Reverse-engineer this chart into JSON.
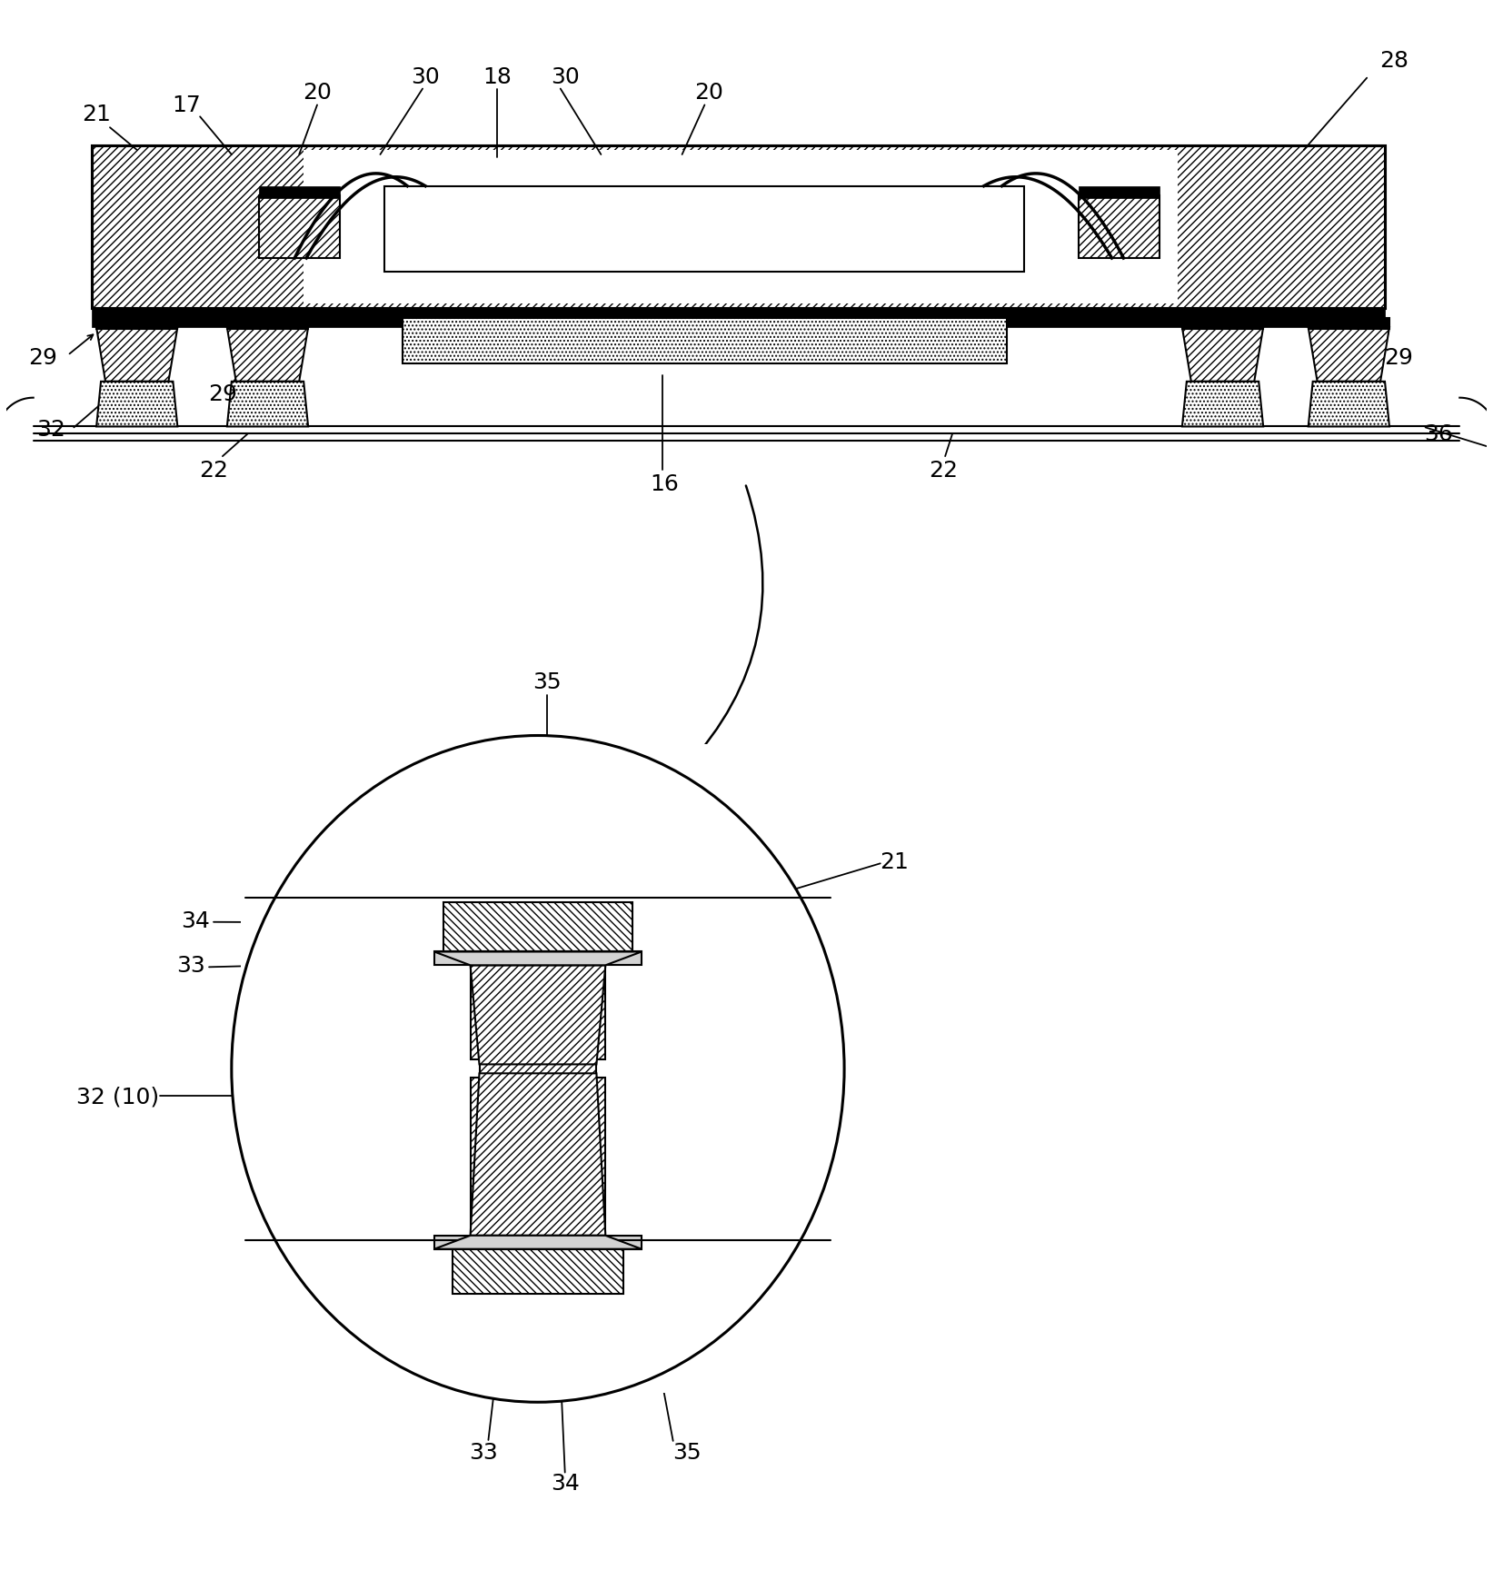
{
  "bg_color": "#ffffff",
  "fig_width": 16.43,
  "fig_height": 17.4,
  "lw_main": 1.5,
  "lw_thick": 2.2,
  "fs_label": 18
}
